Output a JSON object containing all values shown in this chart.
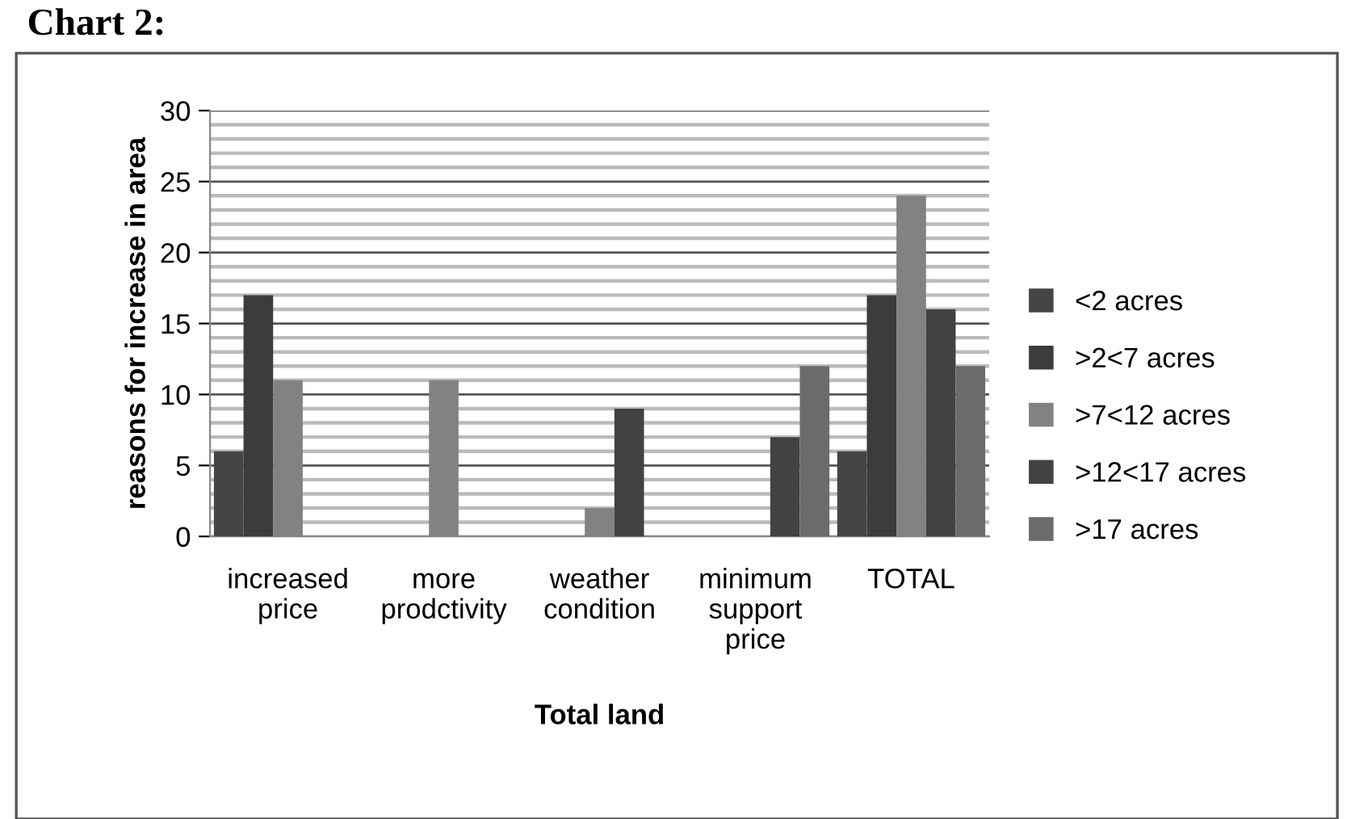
{
  "chart_data": {
    "type": "bar",
    "title": "Chart 2:",
    "xlabel": "Total land",
    "ylabel": "reasons for increase in area",
    "categories": [
      "increased\nprice",
      "more\nprodctivity",
      "weather\ncondition",
      "minimum\nsupport\nprice",
      "TOTAL"
    ],
    "series": [
      {
        "name": "<2 acres",
        "color": "#454545",
        "values": [
          6,
          0,
          0,
          0,
          6
        ]
      },
      {
        "name": ">2<7 acres",
        "color": "#3c3c3c",
        "values": [
          17,
          0,
          0,
          0,
          17
        ]
      },
      {
        "name": ">7<12 acres",
        "color": "#828282",
        "values": [
          11,
          11,
          2,
          0,
          24
        ]
      },
      {
        "name": ">12<17 acres",
        "color": "#424242",
        "values": [
          0,
          0,
          9,
          7,
          16
        ]
      },
      {
        "name": ">17 acres",
        "color": "#6b6b6b",
        "values": [
          0,
          0,
          0,
          12,
          12
        ]
      }
    ],
    "ylim": [
      0,
      30
    ],
    "yticks": [
      0,
      {
        "value": 1,
        "label": null
      },
      {
        "value": 2,
        "label": null
      },
      {
        "value": 3,
        "label": null
      },
      {
        "value": 4,
        "label": null
      },
      5,
      {
        "value": 6,
        "label": null
      },
      {
        "value": 7,
        "label": null
      },
      {
        "value": 8,
        "label": null
      },
      {
        "value": 9,
        "label": null
      },
      10,
      {
        "value": 11,
        "label": null
      },
      {
        "value": 12,
        "label": null
      },
      {
        "value": 13,
        "label": null
      },
      {
        "value": 14,
        "label": null
      },
      15,
      {
        "value": 16,
        "label": null
      },
      {
        "value": 17,
        "label": null
      },
      {
        "value": 18,
        "label": null
      },
      {
        "value": 19,
        "label": null
      },
      20,
      {
        "value": 21,
        "label": null
      },
      {
        "value": 22,
        "label": null
      },
      {
        "value": 23,
        "label": null
      },
      {
        "value": 24,
        "label": null
      },
      25,
      {
        "value": 26,
        "label": null
      },
      {
        "value": 27,
        "label": null
      },
      {
        "value": 28,
        "label": null
      },
      {
        "value": 29,
        "label": null
      },
      30
    ],
    "grid": "y",
    "legend": "right"
  }
}
